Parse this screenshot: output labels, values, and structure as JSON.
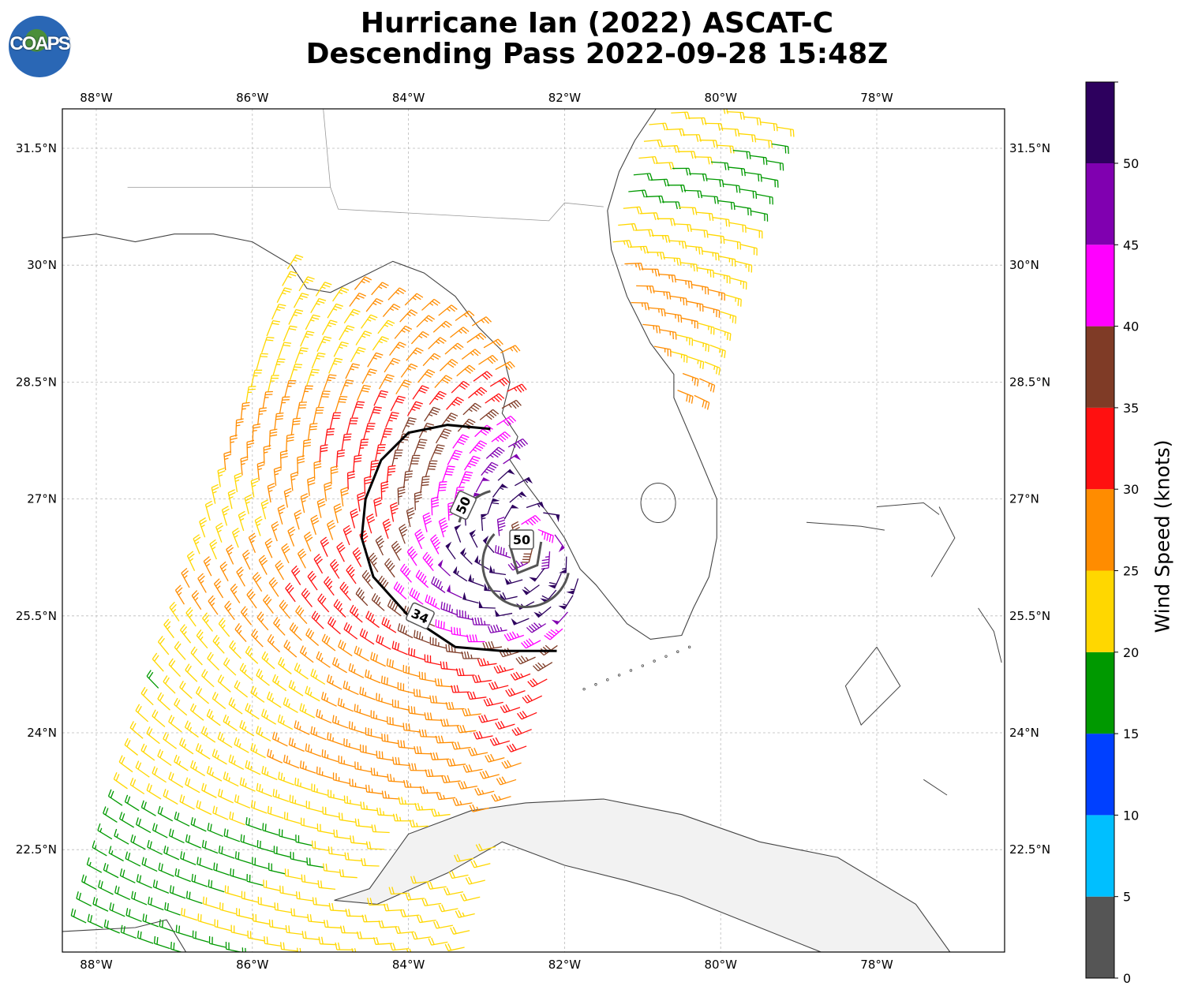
{
  "title": {
    "line1": "Hurricane Ian (2022) ASCAT-C",
    "line2": "Descending Pass 2022-09-28 15:48Z"
  },
  "logo": {
    "text": "COAPS"
  },
  "map": {
    "lon_ticks": [
      "88°W",
      "86°W",
      "84°W",
      "82°W",
      "80°W",
      "78°W"
    ],
    "lat_ticks": [
      "31.5°N",
      "30°N",
      "28.5°N",
      "27°N",
      "25.5°N",
      "24°N",
      "22.5°N"
    ],
    "contour_labels": [
      "50",
      "50",
      "34"
    ]
  },
  "colorbar": {
    "label": "Wind Speed (knots)",
    "ticks": [
      "0",
      "5",
      "10",
      "15",
      "20",
      "25",
      "30",
      "35",
      "40",
      "45",
      "50"
    ],
    "colors": [
      "#555555",
      "#00bfff",
      "#0040ff",
      "#009900",
      "#ffd700",
      "#ff8c00",
      "#ff1010",
      "#7f3b26",
      "#ff00ff",
      "#8000b0",
      "#2d005e"
    ]
  }
}
